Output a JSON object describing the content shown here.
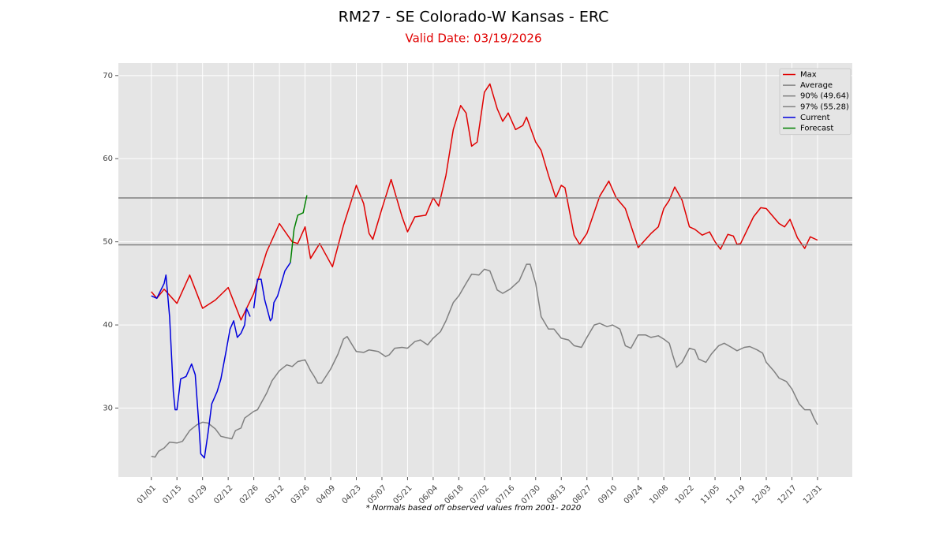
{
  "chart_data": {
    "type": "line",
    "title": "RM27 - SE Colorado-W Kansas - ERC",
    "subtitle": "Valid Date: 03/19/2026",
    "footnote": "* Normals based off observed values from 2001- 2020",
    "xlim": [
      -18,
      383
    ],
    "ylim": [
      21.7,
      71.5
    ],
    "yticks": [
      30,
      40,
      50,
      60,
      70
    ],
    "xticks": [
      {
        "value": 0,
        "label": "01/01"
      },
      {
        "value": 14,
        "label": "01/15"
      },
      {
        "value": 28,
        "label": "01/29"
      },
      {
        "value": 42,
        "label": "02/12"
      },
      {
        "value": 56,
        "label": "02/26"
      },
      {
        "value": 70,
        "label": "03/12"
      },
      {
        "value": 84,
        "label": "03/26"
      },
      {
        "value": 98,
        "label": "04/09"
      },
      {
        "value": 112,
        "label": "04/23"
      },
      {
        "value": 126,
        "label": "05/07"
      },
      {
        "value": 140,
        "label": "05/21"
      },
      {
        "value": 154,
        "label": "06/04"
      },
      {
        "value": 168,
        "label": "06/18"
      },
      {
        "value": 182,
        "label": "07/02"
      },
      {
        "value": 196,
        "label": "07/16"
      },
      {
        "value": 210,
        "label": "07/30"
      },
      {
        "value": 224,
        "label": "08/13"
      },
      {
        "value": 238,
        "label": "08/27"
      },
      {
        "value": 252,
        "label": "09/10"
      },
      {
        "value": 266,
        "label": "09/24"
      },
      {
        "value": 280,
        "label": "10/08"
      },
      {
        "value": 294,
        "label": "10/22"
      },
      {
        "value": 308,
        "label": "11/05"
      },
      {
        "value": 322,
        "label": "11/19"
      },
      {
        "value": 336,
        "label": "12/03"
      },
      {
        "value": 350,
        "label": "12/17"
      },
      {
        "value": 364,
        "label": "12/31"
      }
    ],
    "grid": true,
    "legend": "upper right",
    "series": [
      {
        "name": "Max",
        "color": "#e00000",
        "x": [
          0,
          3,
          7,
          14,
          21,
          28,
          35,
          42,
          49,
          56,
          63,
          70,
          77,
          80,
          84,
          87,
          92,
          99,
          105,
          112,
          116,
          119,
          121,
          126,
          131,
          137,
          140,
          144,
          150,
          154,
          157,
          161,
          165,
          169,
          172,
          175,
          178,
          182,
          185,
          189,
          192,
          195,
          199,
          203,
          205,
          210,
          213,
          217,
          221,
          224,
          226,
          231,
          234,
          238,
          245,
          250,
          254,
          259,
          266,
          273,
          277,
          280,
          283,
          286,
          290,
          294,
          297,
          301,
          305,
          308,
          311,
          315,
          318,
          320,
          322,
          329,
          333,
          336,
          343,
          346,
          349,
          353,
          357,
          360,
          364
        ],
        "values": [
          44,
          43.2,
          44.3,
          42.6,
          46,
          42,
          43,
          44.5,
          40.6,
          43.8,
          48.8,
          52.2,
          50,
          49.8,
          51.8,
          48,
          49.8,
          47,
          52,
          56.8,
          54.6,
          51,
          50.3,
          54,
          57.5,
          53,
          51.2,
          53,
          53.2,
          55.3,
          54.3,
          58,
          63.5,
          66.4,
          65.5,
          61.5,
          62,
          68,
          69,
          66,
          64.5,
          65.5,
          63.5,
          64,
          65,
          62,
          61,
          58,
          55.3,
          56.8,
          56.5,
          50.8,
          49.7,
          51,
          55.5,
          57.3,
          55.3,
          54,
          49.3,
          51,
          51.8,
          54,
          55,
          56.6,
          55,
          51.8,
          51.5,
          50.8,
          51.2,
          50,
          49.1,
          50.9,
          50.7,
          49.7,
          49.8,
          53,
          54.1,
          54,
          52.2,
          51.8,
          52.7,
          50.5,
          49.2,
          50.6,
          50.2
        ]
      },
      {
        "name": "Average",
        "color": "#808080",
        "x": [
          0,
          2,
          4,
          7,
          10,
          14,
          17,
          21,
          25,
          28,
          31,
          35,
          38,
          42,
          44,
          46,
          49,
          51,
          56,
          58,
          63,
          66,
          70,
          74,
          77,
          80,
          84,
          87,
          89,
          91,
          93,
          98,
          102,
          105,
          107,
          110,
          112,
          116,
          119,
          124,
          128,
          130,
          133,
          137,
          140,
          144,
          147,
          151,
          154,
          158,
          161,
          165,
          168,
          172,
          175,
          179,
          182,
          185,
          189,
          192,
          196,
          201,
          205,
          207,
          210,
          213,
          217,
          220,
          224,
          228,
          231,
          235,
          238,
          242,
          245,
          249,
          252,
          256,
          259,
          262,
          266,
          270,
          273,
          277,
          280,
          283,
          285,
          287,
          290,
          294,
          297,
          299,
          303,
          306,
          310,
          313,
          317,
          320,
          324,
          327,
          331,
          334,
          336,
          340,
          343,
          347,
          350,
          354,
          357,
          360,
          362,
          364
        ],
        "values": [
          24.2,
          24.1,
          24.8,
          25.2,
          25.9,
          25.8,
          26,
          27.3,
          28,
          28.3,
          28.2,
          27.5,
          26.6,
          26.4,
          26.3,
          27.3,
          27.6,
          28.8,
          29.6,
          29.8,
          31.8,
          33.3,
          34.5,
          35.2,
          35,
          35.6,
          35.8,
          34.5,
          33.8,
          33,
          33,
          34.7,
          36.5,
          38.3,
          38.6,
          37.5,
          36.8,
          36.7,
          37,
          36.8,
          36.2,
          36.4,
          37.2,
          37.3,
          37.2,
          38,
          38.2,
          37.6,
          38.4,
          39.2,
          40.5,
          42.7,
          43.5,
          45,
          46.1,
          46,
          46.7,
          46.5,
          44.2,
          43.8,
          44.3,
          45.3,
          47.3,
          47.3,
          45,
          41,
          39.5,
          39.5,
          38.4,
          38.2,
          37.5,
          37.3,
          38.5,
          40,
          40.2,
          39.8,
          40,
          39.5,
          37.5,
          37.2,
          38.8,
          38.8,
          38.5,
          38.7,
          38.3,
          37.8,
          36.3,
          34.9,
          35.5,
          37.2,
          37,
          35.9,
          35.5,
          36.5,
          37.5,
          37.8,
          37.3,
          36.9,
          37.3,
          37.4,
          37,
          36.6,
          35.5,
          34.5,
          33.6,
          33.2,
          32.3,
          30.5,
          29.8,
          29.8,
          28.8,
          28
        ]
      },
      {
        "name": "90% (49.64)",
        "color": "#808080",
        "y": 49.64
      },
      {
        "name": "97% (55.28)",
        "color": "#808080",
        "y": 55.28
      },
      {
        "name": "Current",
        "color": "#0000dd",
        "x": [
          0,
          3,
          7,
          8,
          10,
          12,
          13,
          14,
          16,
          19,
          22,
          24,
          26,
          27,
          29,
          31,
          33,
          36,
          38,
          41,
          43,
          45,
          47,
          49,
          51,
          52,
          54,
          55,
          56,
          58,
          60,
          62,
          65,
          66,
          67,
          69,
          71,
          73,
          76
        ],
        "values": [
          43.5,
          43.2,
          45,
          46,
          41,
          32,
          29.8,
          29.8,
          33.5,
          33.8,
          35.3,
          34,
          28,
          24.5,
          24,
          27,
          30.5,
          32,
          33.5,
          37,
          39.5,
          40.5,
          38.5,
          39,
          40,
          42,
          41,
          null,
          42,
          45.5,
          45.5,
          43,
          40.5,
          40.8,
          42.7,
          43.5,
          45,
          46.5,
          47.5
        ]
      },
      {
        "name": "Forecast",
        "color": "#008000",
        "x": [
          76,
          78,
          80,
          83,
          85
        ],
        "values": [
          47.5,
          51.5,
          53.2,
          53.5,
          55.6
        ]
      }
    ]
  }
}
